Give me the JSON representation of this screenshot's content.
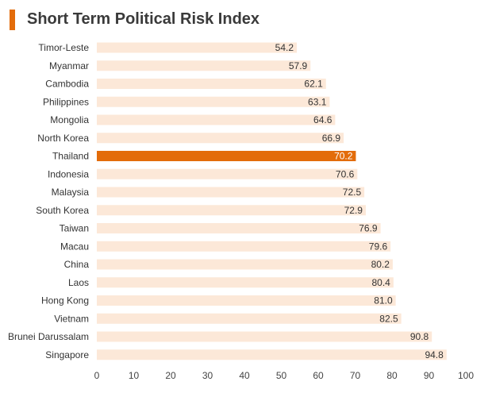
{
  "header": {
    "title": "Short Term Political Risk Index"
  },
  "colors": {
    "accent": "#e36c0a",
    "bar": "#fce8d8",
    "highlight": "#e36c0a"
  },
  "chart_data": {
    "type": "bar",
    "orientation": "horizontal",
    "title": "Short Term Political Risk Index",
    "xlabel": "",
    "ylabel": "",
    "xlim": [
      0,
      100
    ],
    "ticks": [
      "0",
      "10",
      "20",
      "30",
      "40",
      "50",
      "60",
      "70",
      "80",
      "90",
      "100"
    ],
    "grid": false,
    "highlight": "Thailand",
    "categories": [
      "Timor-Leste",
      "Myanmar",
      "Cambodia",
      "Philippines",
      "Mongolia",
      "North Korea",
      "Thailand",
      "Indonesia",
      "Malaysia",
      "South Korea",
      "Taiwan",
      "Macau",
      "China",
      "Laos",
      "Hong Kong",
      "Vietnam",
      "Brunei Darussalam",
      "Singapore"
    ],
    "values": [
      54.2,
      57.9,
      62.1,
      63.1,
      64.6,
      66.9,
      70.2,
      70.6,
      72.5,
      72.9,
      76.9,
      79.6,
      80.2,
      80.4,
      81.0,
      82.5,
      90.8,
      94.8
    ],
    "value_labels": [
      "54.2",
      "57.9",
      "62.1",
      "63.1",
      "64.6",
      "66.9",
      "70.2",
      "70.6",
      "72.5",
      "72.9",
      "76.9",
      "79.6",
      "80.2",
      "80.4",
      "81.0",
      "82.5",
      "90.8",
      "94.8"
    ]
  }
}
